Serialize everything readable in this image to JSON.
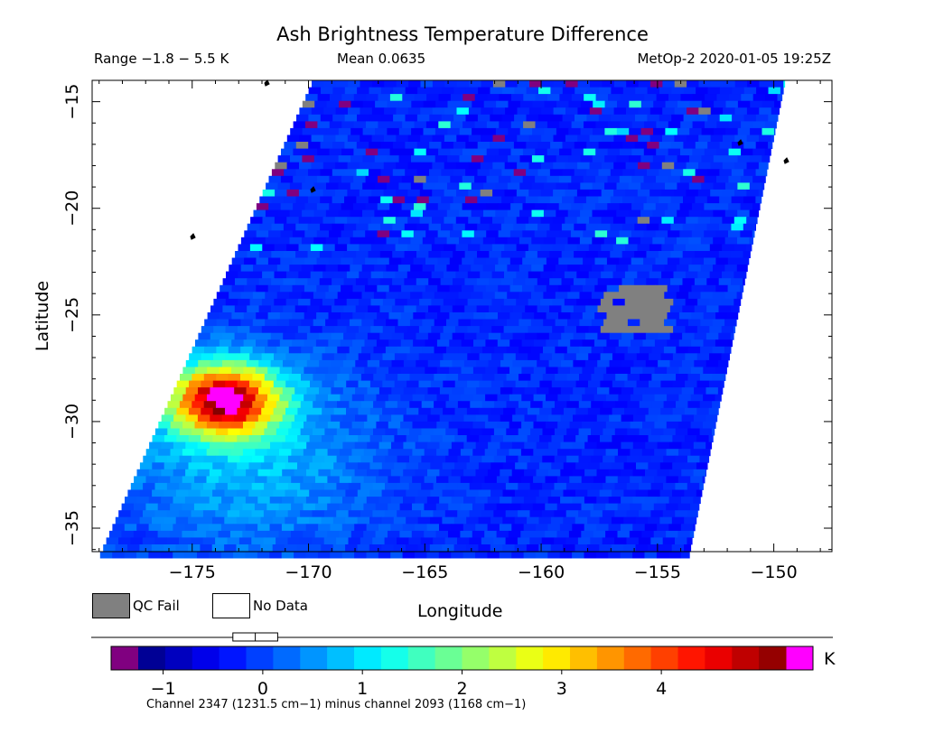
{
  "header": {
    "title": "Ash Brightness Temperature Difference",
    "range_text": "Range −1.8 − 5.5 K",
    "mean_text": "Mean 0.0635",
    "satellite_time": "MetOp-2 2020-01-05 19:25Z"
  },
  "legend": {
    "qc_fail_label": "QC Fail",
    "no_data_label": "No Data",
    "qc_fail_color": "#808080",
    "no_data_color": "#ffffff"
  },
  "colorbar": {
    "unit": "K",
    "ticks": [
      {
        "value": -1,
        "label": "−1"
      },
      {
        "value": 0,
        "label": "0"
      },
      {
        "value": 1,
        "label": "1"
      },
      {
        "value": 2,
        "label": "2"
      },
      {
        "value": 3,
        "label": "3"
      },
      {
        "value": 4,
        "label": "4"
      }
    ],
    "range": [
      -1.25,
      5.25
    ],
    "under_color": "#800080",
    "over_color": "#ff00ff",
    "range_marker": [
      -0.3,
      0.15
    ]
  },
  "footnote": "Channel 2347 (1231.5 cm−1) minus channel 2093 (1168 cm−1)",
  "chart_data": {
    "type": "heatmap",
    "title": "Ash Brightness Temperature Difference",
    "xlabel": "Longitude",
    "ylabel": "Latitude",
    "xlim": [
      -179.3,
      -147.5
    ],
    "ylim": [
      -36.1,
      -14.0
    ],
    "x_ticks": [
      {
        "value": -175,
        "label": "−175"
      },
      {
        "value": -170,
        "label": "−170"
      },
      {
        "value": -165,
        "label": "−165"
      },
      {
        "value": -160,
        "label": "−160"
      },
      {
        "value": -155,
        "label": "−155"
      },
      {
        "value": -150,
        "label": "−150"
      }
    ],
    "y_ticks": [
      {
        "value": -15,
        "label": "−15"
      },
      {
        "value": -20,
        "label": "−20"
      },
      {
        "value": -25,
        "label": "−25"
      },
      {
        "value": -30,
        "label": "−30"
      },
      {
        "value": -35,
        "label": "−35"
      }
    ],
    "units": "K",
    "value_range": [
      -1.8,
      5.5
    ],
    "mean": 0.0635,
    "background_value": -0.2,
    "ash_plume": {
      "center_lon": -173.6,
      "center_lat": -29.0,
      "peak_value": 5.5
    },
    "qc_fail_region": {
      "lon": [
        -157.5,
        -154.5
      ],
      "lat": [
        -25.8,
        -23.5
      ]
    },
    "swath": {
      "left_edge_lon": [
        -169.8,
        -178.9
      ],
      "right_edge_lon": [
        -149.5,
        -153.6
      ],
      "edge_lat": [
        -14.0,
        -36.1
      ]
    }
  }
}
